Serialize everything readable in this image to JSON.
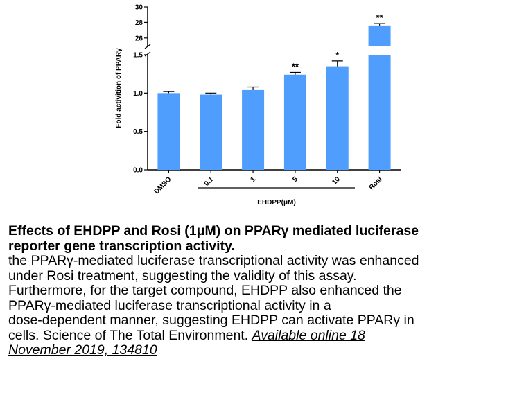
{
  "chart_data": {
    "type": "bar",
    "ylabel": "Fold activition of PPARγ",
    "group_label": "EHDPP(μM)",
    "categories": [
      "DMSO",
      "0.1",
      "1",
      "5",
      "10",
      "Rosi"
    ],
    "values": [
      1.0,
      0.98,
      1.04,
      1.24,
      1.35,
      27.6
    ],
    "errors": [
      0.02,
      0.02,
      0.04,
      0.03,
      0.07,
      0.25
    ],
    "significance": [
      "",
      "",
      "",
      "**",
      "*",
      "**"
    ],
    "y_axis_broken": true,
    "lower_segment": {
      "ylim": [
        0.0,
        1.5
      ],
      "ticks": [
        "0.0",
        "0.5",
        "1.0",
        "1.5"
      ]
    },
    "upper_segment": {
      "ylim": [
        25,
        30
      ],
      "ticks": [
        "26",
        "28",
        "30"
      ]
    },
    "bar_color": "#4f9dfc",
    "grid": false
  },
  "caption": {
    "title_lines": [
      "Effects of EHDPP and Rosi (1μM) on PPARγ mediated luciferase",
      "reporter gene transcription activity."
    ],
    "body_lines": [
      "the PPARγ-mediated luciferase transcriptional activity was enhanced",
      "under Rosi treatment, suggesting the validity of this assay.",
      "Furthermore, for the target compound, EHDPP also enhanced the",
      "PPARγ-mediated luciferase transcriptional activity in a",
      "dose-dependent manner, suggesting EHDPP can activate PPARγ in"
    ],
    "last_line_text": "cells. Science of The Total Environment. ",
    "link_line1": "Available online 18 ",
    "link_line2": "November 2019, 134810"
  }
}
